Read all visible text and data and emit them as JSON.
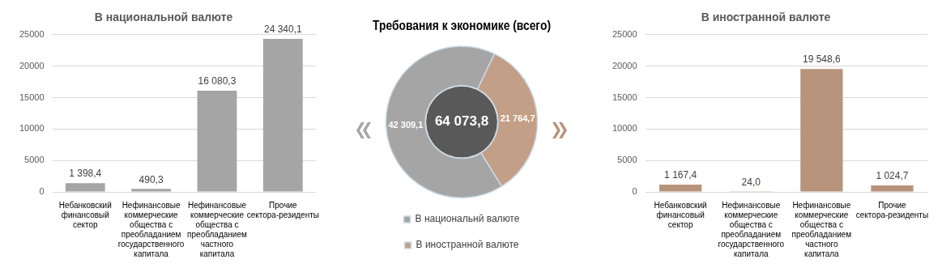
{
  "chart_data": [
    {
      "type": "bar",
      "title": "В национальной валюте",
      "categories": [
        "Небанковский финансовый сектор",
        "Нефинансовые коммерческие общества с преобладанием государственного капитала",
        "Нефинансовые коммерческие общества с преобладанием частного капитала",
        "Прочие сектора-резиденты"
      ],
      "values": [
        1398.4,
        490.3,
        16080.3,
        24340.1
      ],
      "value_labels": [
        "1 398,4",
        "490,3",
        "16 080,3",
        "24 340,1"
      ],
      "color": "#a5a5a5",
      "ylim": [
        0,
        25000
      ],
      "yticks": [
        0,
        5000,
        10000,
        15000,
        20000,
        25000
      ],
      "grid": "y"
    },
    {
      "type": "donut",
      "title": "Требования к экономике (всего)",
      "categories": [
        "В национальнй валюте",
        "В иностранной валюте"
      ],
      "values": [
        42309.1,
        21764.7
      ],
      "value_labels": [
        "42 309,1",
        "21 764,7"
      ],
      "colors": [
        "#a5a5a5",
        "#c49f87"
      ],
      "annotations": [
        "64 073,8"
      ],
      "legend": "bottom"
    },
    {
      "type": "bar",
      "title": "В иностранной валюте",
      "categories": [
        "Небанковский финансовый сектор",
        "Нефинансовые коммерческие общества с преобладанием государственного капитала",
        "Нефинансовые коммерческие общества с преобладанием частного капитала",
        "Прочие сектора-резиденты"
      ],
      "values": [
        1167.4,
        24.0,
        19548.6,
        1024.7
      ],
      "value_labels": [
        "1 167,4",
        "24,0",
        "19 548,6",
        "1 024,7"
      ],
      "color": "#b8937b",
      "ylim": [
        0,
        25000
      ],
      "yticks": [
        0,
        5000,
        10000,
        15000,
        20000,
        25000
      ],
      "grid": "y"
    }
  ]
}
